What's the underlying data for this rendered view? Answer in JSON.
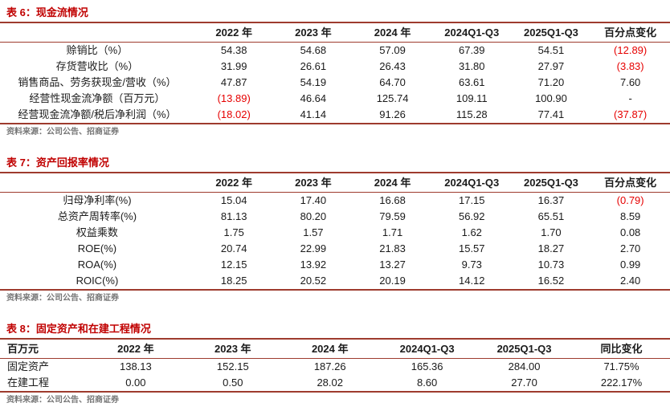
{
  "colors": {
    "title_red": "#c00000",
    "rule": "#9e3b2e",
    "negative": "#e60000",
    "text": "#262626",
    "source": "#757575"
  },
  "tables": [
    {
      "title": "表 6：现金流情况",
      "headers": [
        "",
        "2022 年",
        "2023 年",
        "2024 年",
        "2024Q1-Q3",
        "2025Q1-Q3",
        "百分点变化"
      ],
      "rows": [
        {
          "label": "赊销比（%）",
          "values": [
            "54.38",
            "54.68",
            "57.09",
            "67.39",
            "54.51",
            "(12.89)"
          ]
        },
        {
          "label": "存货营收比（%）",
          "values": [
            "31.99",
            "26.61",
            "26.43",
            "31.80",
            "27.97",
            "(3.83)"
          ]
        },
        {
          "label": "销售商品、劳务获现金/营收（%）",
          "values": [
            "47.87",
            "54.19",
            "64.70",
            "63.61",
            "71.20",
            "7.60"
          ]
        },
        {
          "label": "经营性现金流净额（百万元）",
          "values": [
            "(13.89)",
            "46.64",
            "125.74",
            "109.11",
            "100.90",
            "-"
          ]
        },
        {
          "label": "经营现金流净额/税后净利润（%）",
          "values": [
            "(18.02)",
            "41.14",
            "91.26",
            "115.28",
            "77.41",
            "(37.87)"
          ]
        }
      ],
      "source": "资料来源：公司公告、招商证券"
    },
    {
      "title": "表 7：资产回报率情况",
      "headers": [
        "",
        "2022 年",
        "2023 年",
        "2024 年",
        "2024Q1-Q3",
        "2025Q1-Q3",
        "百分点变化"
      ],
      "rows": [
        {
          "label": "归母净利率(%)",
          "values": [
            "15.04",
            "17.40",
            "16.68",
            "17.15",
            "16.37",
            "(0.79)"
          ]
        },
        {
          "label": "总资产周转率(%)",
          "values": [
            "81.13",
            "80.20",
            "79.59",
            "56.92",
            "65.51",
            "8.59"
          ]
        },
        {
          "label": "权益乘数",
          "values": [
            "1.75",
            "1.57",
            "1.71",
            "1.62",
            "1.70",
            "0.08"
          ]
        },
        {
          "label": "ROE(%)",
          "values": [
            "20.74",
            "22.99",
            "21.83",
            "15.57",
            "18.27",
            "2.70"
          ]
        },
        {
          "label": "ROA(%)",
          "values": [
            "12.15",
            "13.92",
            "13.27",
            "9.73",
            "10.73",
            "0.99"
          ]
        },
        {
          "label": "ROIC(%)",
          "values": [
            "18.25",
            "20.52",
            "20.19",
            "14.12",
            "16.52",
            "2.40"
          ]
        }
      ],
      "source": "资料来源：公司公告、招商证券"
    },
    {
      "title": "表 8：固定资产和在建工程情况",
      "headers": [
        "百万元",
        "2022 年",
        "2023 年",
        "2024 年",
        "2024Q1-Q3",
        "2025Q1-Q3",
        "同比变化"
      ],
      "rows": [
        {
          "label": "固定资产",
          "values": [
            "138.13",
            "152.15",
            "187.26",
            "165.36",
            "284.00",
            "71.75%"
          ]
        },
        {
          "label": "在建工程",
          "values": [
            "0.00",
            "0.50",
            "28.02",
            "8.60",
            "27.70",
            "222.17%"
          ]
        }
      ],
      "source": "资料来源：公司公告、招商证券"
    }
  ]
}
